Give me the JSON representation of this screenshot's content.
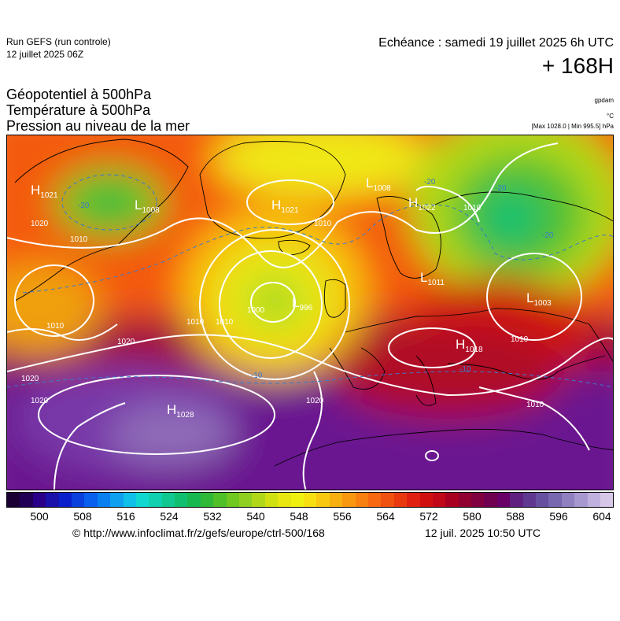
{
  "header": {
    "run": "Run GEFS (run controle)",
    "run_date": "12 juillet 2025 06Z",
    "valid": "Echéance : samedi 19 juillet 2025 6h UTC",
    "lead": "+ 168H"
  },
  "titles": {
    "line1": "Géopotentiel à 500hPa",
    "line2": "Température à 500hPa",
    "line3": "Pression au niveau de la mer"
  },
  "units": {
    "geopotential": "gpdam",
    "temperature": "°C",
    "pressure": "[Max 1028.0 | Min 995.5] hPa"
  },
  "pressure_centers": [
    {
      "type": "H",
      "value": "1021"
    },
    {
      "type": "L",
      "value": "1008"
    },
    {
      "type": "H",
      "value": "1021"
    },
    {
      "type": "L",
      "value": "1008"
    },
    {
      "type": "H",
      "value": "1022"
    },
    {
      "type": "L",
      "value": "996"
    },
    {
      "type": "L",
      "value": "1011"
    },
    {
      "type": "L",
      "value": "1003"
    },
    {
      "type": "H",
      "value": "1018"
    },
    {
      "type": "H",
      "value": "1028"
    }
  ],
  "isobar_labels": [
    "1020",
    "1010",
    "1010",
    "1020",
    "1020",
    "1010",
    "1000",
    "1010",
    "1010",
    "1010",
    "1020",
    "1020",
    "1010",
    "1010"
  ],
  "isotherm_labels": [
    "-20",
    "-20",
    "-20",
    "-20",
    "-10",
    "-10"
  ],
  "colorbar": {
    "ticks": [
      "500",
      "508",
      "516",
      "524",
      "532",
      "540",
      "548",
      "556",
      "564",
      "572",
      "580",
      "588",
      "596",
      "604"
    ],
    "colors": [
      "#1a0033",
      "#220055",
      "#2a0088",
      "#1a10aa",
      "#0a20cc",
      "#0a40dd",
      "#0a60ee",
      "#0a80f0",
      "#10a0f0",
      "#10c0e8",
      "#10d8d0",
      "#10d0b0",
      "#10c890",
      "#10c070",
      "#18b850",
      "#30b838",
      "#50c028",
      "#70c820",
      "#90d020",
      "#b0d818",
      "#d0e010",
      "#e8e810",
      "#f0f010",
      "#f8e010",
      "#f8c810",
      "#f8b010",
      "#f89810",
      "#f88010",
      "#f86810",
      "#f05010",
      "#e83810",
      "#e02010",
      "#d01010",
      "#c00818",
      "#a80020",
      "#900030",
      "#800040",
      "#700050",
      "#680068",
      "#602080",
      "#603890",
      "#6850a0",
      "#7868b0",
      "#9080c0",
      "#a898d0",
      "#c0b0e0",
      "#d8c8e8"
    ]
  },
  "footer": {
    "credit": "© http://www.infoclimat.fr/z/gefs/europe/ctrl-500/168",
    "timestamp": "12 juil. 2025 10:50 UTC"
  }
}
